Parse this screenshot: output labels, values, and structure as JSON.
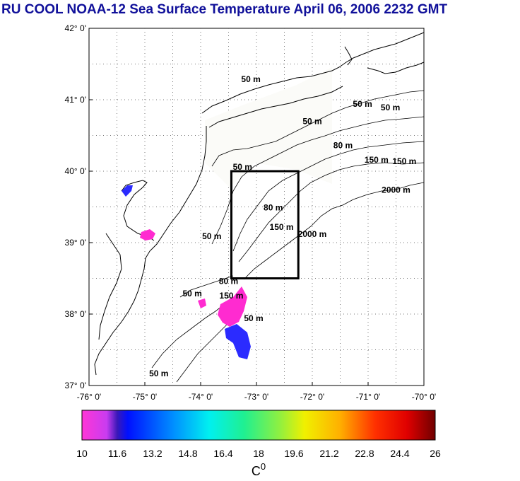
{
  "title": "RU COOL  NOAA-12 Sea Surface Temperature April 06, 2006 2232 GMT",
  "map": {
    "lon_range": [
      -76,
      -70
    ],
    "lat_range": [
      37,
      42
    ],
    "grid": "dotted",
    "lat_ticks": [
      "42° 0'",
      "41° 0'",
      "40° 0'",
      "39° 0'",
      "38° 0'",
      "37° 0'"
    ],
    "lon_ticks": [
      "-76° 0'",
      "-75° 0'",
      "-74° 0'",
      "-73° 0'",
      "-72° 0'",
      "-71° 0'",
      "-70° 0'"
    ],
    "contour_labels": [
      {
        "text": "50 m",
        "lon": -73.1,
        "lat": 41.25
      },
      {
        "text": "50 m",
        "lon": -72.0,
        "lat": 40.66
      },
      {
        "text": "50 m",
        "lon": -71.1,
        "lat": 40.9
      },
      {
        "text": "50 m",
        "lon": -70.6,
        "lat": 40.85
      },
      {
        "text": "80 m",
        "lon": -71.45,
        "lat": 40.32
      },
      {
        "text": "150 m",
        "lon": -70.85,
        "lat": 40.12
      },
      {
        "text": "150 m",
        "lon": -70.35,
        "lat": 40.1
      },
      {
        "text": "50 m",
        "lon": -73.25,
        "lat": 40.02
      },
      {
        "text": "2000 m",
        "lon": -70.5,
        "lat": 39.7
      },
      {
        "text": "80 m",
        "lon": -72.7,
        "lat": 39.45
      },
      {
        "text": "150 m",
        "lon": -72.55,
        "lat": 39.18
      },
      {
        "text": "2000 m",
        "lon": -72.0,
        "lat": 39.08
      },
      {
        "text": "50 m",
        "lon": -73.8,
        "lat": 39.05
      },
      {
        "text": "80 m",
        "lon": -73.5,
        "lat": 38.42
      },
      {
        "text": "150 m",
        "lon": -73.45,
        "lat": 38.22
      },
      {
        "text": "50 m",
        "lon": -74.15,
        "lat": 38.25
      },
      {
        "text": "50 m",
        "lon": -73.05,
        "lat": 37.9
      },
      {
        "text": "50 m",
        "lon": -74.75,
        "lat": 37.13
      }
    ],
    "study_box": {
      "lon_min": -73.45,
      "lon_max": -72.25,
      "lat_min": 38.5,
      "lat_max": 40.0
    }
  },
  "colorbar": {
    "min": 10,
    "max": 26,
    "tick_labels": [
      "10",
      "11.6",
      "13.2",
      "14.8",
      "16.4",
      "18",
      "19.6",
      "21.2",
      "22.8",
      "24.4",
      "26"
    ],
    "unit": "C",
    "unit_superscript": "0"
  },
  "colors": {
    "title": "#10109a",
    "coast": "#000000",
    "sst_cold_magenta": "#ff2bd0",
    "sst_blue": "#2b2bff"
  }
}
